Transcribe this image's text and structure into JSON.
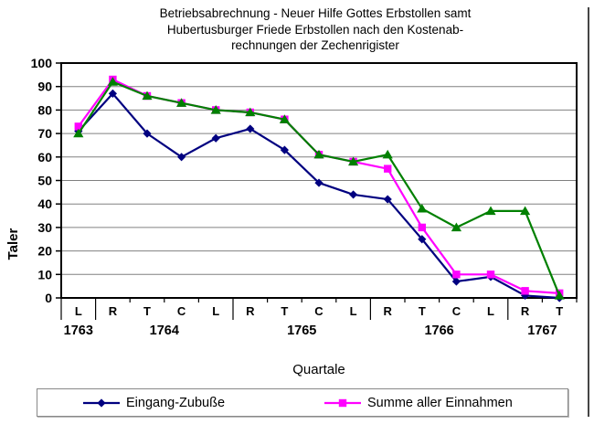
{
  "title": {
    "lines": [
      "Betriebsabrechnung - Neuer Hilfe Gottes Erbstollen samt",
      "Hubertusburger Friede Erbstollen nach den Kostenab-",
      "rechnungen der Zechenrigister"
    ]
  },
  "axes": {
    "y_title": "Taler",
    "x_title": "Quartale"
  },
  "legend": [
    {
      "label": "Eingang-Zubuße",
      "color": "#000080",
      "marker": "diamond"
    },
    {
      "label": "Summe aller Einnahmen",
      "color": "#FF00FF",
      "marker": "square"
    }
  ],
  "colors": {
    "grid": "#808080",
    "axis": "#000000"
  },
  "chart_data": {
    "type": "line",
    "title": "Betriebsabrechnung - Neuer Hilfe Gottes Erbstollen samt Hubertusburger Friede Erbstollen nach den Kostenabrechnungen der Zechenrigister",
    "xlabel": "Quartale",
    "ylabel": "Taler",
    "ylim": [
      0,
      100
    ],
    "ytick_step": 10,
    "grid": "horizontal",
    "legend_position": "bottom",
    "categories": [
      "L",
      "R",
      "T",
      "C",
      "L",
      "R",
      "T",
      "C",
      "L",
      "R",
      "T",
      "C",
      "L",
      "R",
      "T"
    ],
    "year_groups": [
      {
        "year": "1763",
        "start": 0,
        "span": 1
      },
      {
        "year": "1764",
        "start": 1,
        "span": 4
      },
      {
        "year": "1765",
        "start": 5,
        "span": 4
      },
      {
        "year": "1766",
        "start": 9,
        "span": 4
      },
      {
        "year": "1767",
        "start": 13,
        "span": 2
      }
    ],
    "series": [
      {
        "name": "Eingang-Zubuße",
        "color": "#000080",
        "marker": "diamond",
        "in_legend": true,
        "values": [
          71,
          87,
          70,
          60,
          68,
          72,
          63,
          49,
          44,
          42,
          25,
          7,
          9,
          1,
          0
        ]
      },
      {
        "name": "Summe aller Einnahmen",
        "color": "#FF00FF",
        "marker": "square",
        "in_legend": true,
        "values": [
          73,
          93,
          86,
          83,
          80,
          79,
          76,
          61,
          58,
          55,
          30,
          10,
          10,
          3,
          2
        ]
      },
      {
        "name": "",
        "color": "#008000",
        "marker": "triangle",
        "in_legend": false,
        "values": [
          70,
          92,
          86,
          83,
          80,
          79,
          76,
          61,
          58,
          61,
          38,
          30,
          37,
          37,
          1
        ]
      }
    ]
  }
}
